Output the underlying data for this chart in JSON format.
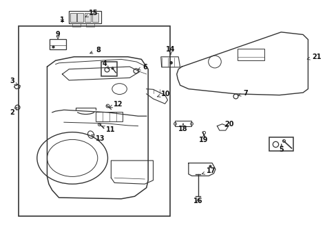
{
  "background_color": "#ffffff",
  "fig_width": 4.89,
  "fig_height": 3.6,
  "dpi": 100,
  "line_color": "#333333",
  "text_color": "#111111",
  "labels": {
    "1": [
      0.185,
      0.895,
      0.185,
      0.915
    ],
    "2": [
      0.052,
      0.565,
      0.04,
      0.545
    ],
    "3": [
      0.052,
      0.65,
      0.038,
      0.67
    ],
    "4": [
      0.31,
      0.72,
      0.298,
      0.74
    ],
    "5": [
      0.84,
      0.415,
      0.84,
      0.395
    ],
    "6": [
      0.42,
      0.715,
      0.44,
      0.728
    ],
    "7": [
      0.72,
      0.61,
      0.75,
      0.622
    ],
    "8": [
      0.26,
      0.8,
      0.29,
      0.815
    ],
    "9": [
      0.155,
      0.855,
      0.155,
      0.875
    ],
    "10": [
      0.47,
      0.628,
      0.49,
      0.64
    ],
    "11": [
      0.33,
      0.49,
      0.345,
      0.475
    ],
    "12": [
      0.33,
      0.565,
      0.352,
      0.578
    ],
    "13": [
      0.295,
      0.452,
      0.318,
      0.438
    ],
    "14": [
      0.49,
      0.79,
      0.49,
      0.81
    ],
    "15": [
      0.245,
      0.965,
      0.268,
      0.95
    ],
    "16": [
      0.598,
      0.218,
      0.598,
      0.198
    ],
    "17": [
      0.615,
      0.295,
      0.638,
      0.308
    ],
    "18": [
      0.54,
      0.47,
      0.54,
      0.45
    ],
    "19": [
      0.608,
      0.448,
      0.608,
      0.428
    ],
    "20": [
      0.66,
      0.478,
      0.678,
      0.492
    ],
    "21": [
      0.92,
      0.76,
      0.95,
      0.772
    ]
  }
}
